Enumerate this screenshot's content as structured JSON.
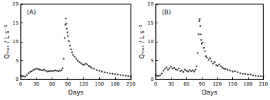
{
  "chart_data": [
    {
      "type": "scatter",
      "title": "(A)",
      "x_label": "Days",
      "y_label": "Qₘₐₓ / L s⁻¹",
      "color": "#000000",
      "marker": "circle",
      "grid": false,
      "xlim": [
        0,
        210
      ],
      "xticks": [
        0,
        30,
        60,
        90,
        120,
        150,
        180,
        210
      ],
      "ylim": [
        0,
        20
      ],
      "yticks": [
        0,
        5,
        10,
        15,
        20
      ],
      "x": [
        0,
        3,
        6,
        9,
        12,
        15,
        18,
        21,
        24,
        27,
        30,
        33,
        36,
        39,
        42,
        45,
        48,
        51,
        54,
        57,
        60,
        63,
        66,
        69,
        72,
        75,
        78,
        80,
        82,
        84,
        85,
        86,
        87,
        88,
        89,
        90,
        92,
        94,
        96,
        98,
        100,
        103,
        106,
        109,
        112,
        115,
        118,
        121,
        124,
        127,
        130,
        133,
        136,
        140,
        145,
        150,
        155,
        160,
        165,
        170,
        175,
        180,
        185,
        190,
        195,
        200,
        205,
        210
      ],
      "values": [
        1.0,
        0.9,
        0.8,
        0.8,
        1.2,
        1.7,
        2.0,
        2.2,
        2.5,
        2.7,
        2.9,
        2.8,
        2.6,
        2.5,
        2.4,
        2.6,
        2.3,
        2.1,
        2.2,
        2.3,
        2.2,
        2.3,
        2.4,
        2.3,
        2.2,
        2.3,
        2.5,
        3.0,
        5.5,
        11.0,
        14.5,
        16.2,
        14.8,
        13.5,
        12.5,
        11.5,
        10.2,
        9.0,
        8.0,
        7.2,
        6.5,
        6.0,
        5.5,
        5.0,
        4.6,
        4.3,
        4.0,
        3.9,
        4.2,
        4.0,
        3.6,
        3.3,
        3.0,
        2.8,
        2.5,
        2.3,
        2.1,
        1.9,
        1.8,
        1.6,
        1.5,
        1.4,
        1.3,
        1.2,
        1.1,
        1.0,
        0.9,
        0.8
      ]
    },
    {
      "type": "scatter",
      "title": "(B)",
      "x_label": "Days",
      "y_label": "Qₘₐₓ / L s⁻¹",
      "color": "#000000",
      "marker": "circle",
      "grid": false,
      "xlim": [
        0,
        210
      ],
      "xticks": [
        0,
        30,
        60,
        90,
        120,
        150,
        180,
        210
      ],
      "ylim": [
        0,
        20
      ],
      "yticks": [
        0,
        5,
        10,
        15,
        20
      ],
      "x": [
        0,
        3,
        6,
        9,
        12,
        15,
        18,
        21,
        24,
        27,
        30,
        33,
        36,
        39,
        42,
        45,
        48,
        51,
        54,
        57,
        60,
        63,
        66,
        69,
        72,
        75,
        78,
        80,
        82,
        84,
        85,
        86,
        87,
        88,
        89,
        90,
        92,
        94,
        96,
        98,
        100,
        103,
        106,
        109,
        112,
        115,
        118,
        121,
        124,
        127,
        130,
        133,
        136,
        140,
        145,
        150,
        155,
        160,
        165,
        170,
        175,
        180,
        185,
        190,
        195,
        200,
        205,
        210
      ],
      "values": [
        1.2,
        1.0,
        0.9,
        1.1,
        1.6,
        2.3,
        2.8,
        3.2,
        2.6,
        3.0,
        3.4,
        2.9,
        3.1,
        2.7,
        2.5,
        2.9,
        2.2,
        2.4,
        2.0,
        2.6,
        2.3,
        2.1,
        2.5,
        2.2,
        2.4,
        2.1,
        2.6,
        3.5,
        7.0,
        12.0,
        15.5,
        16.0,
        14.2,
        12.0,
        10.5,
        9.5,
        9.8,
        8.4,
        7.5,
        6.2,
        5.8,
        5.2,
        5.6,
        4.8,
        4.2,
        4.6,
        3.8,
        3.6,
        4.0,
        3.5,
        3.2,
        2.9,
        2.8,
        2.6,
        2.4,
        2.1,
        2.2,
        1.9,
        1.7,
        1.5,
        1.5,
        1.3,
        1.3,
        1.1,
        1.0,
        0.9,
        0.9,
        0.8
      ]
    }
  ]
}
